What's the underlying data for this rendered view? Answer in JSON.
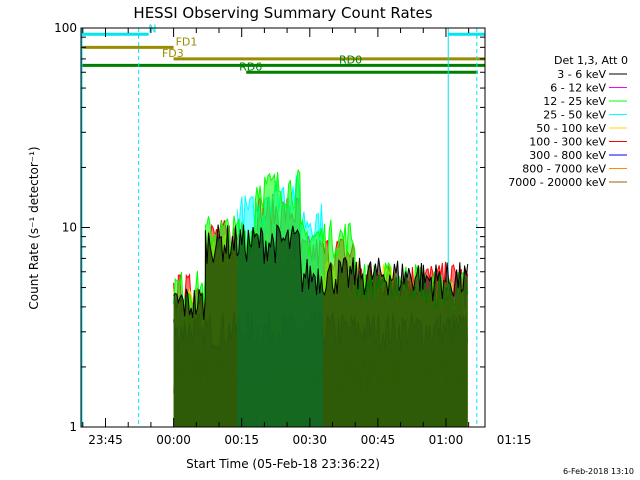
{
  "chart_data": {
    "type": "line",
    "title": "HESSI Observing Summary Count Rates",
    "xlabel": "Start Time (05-Feb-18 23:36:22)",
    "ylabel": "Count Rate (s⁻¹ detector⁻¹)",
    "y_scale": "log",
    "ylim": [
      1,
      100
    ],
    "x_ticks": [
      "23:45",
      "00:00",
      "00:15",
      "00:30",
      "00:45",
      "01:00",
      "01:15"
    ],
    "y_ticks": [
      "1",
      "10",
      "100"
    ],
    "x_range_minutes": [
      -20.4,
      68.6
    ],
    "legend_title": "Det 1,3, Att 0",
    "legend_position": "right",
    "series": [
      {
        "name": "3 - 6 keV",
        "color": "#000000"
      },
      {
        "name": "6 - 12 keV",
        "color": "#ff00ff"
      },
      {
        "name": "12 - 25 keV",
        "color": "#00ff00"
      },
      {
        "name": "25 - 50 keV",
        "color": "#00ffff"
      },
      {
        "name": "50 - 100 keV",
        "color": "#ffd700"
      },
      {
        "name": "100 - 300 keV",
        "color": "#ff0000"
      },
      {
        "name": "300 - 800 keV",
        "color": "#0000ff"
      },
      {
        "name": "800 - 7000 keV",
        "color": "#ff8c00"
      },
      {
        "name": "7000 - 20000 keV",
        "color": "#a06000"
      }
    ],
    "bands": [
      {
        "band": "3 - 6 keV",
        "segments": [
          [
            0,
            7,
            4.2
          ],
          [
            7,
            28,
            8.5
          ],
          [
            28,
            55,
            5.8
          ],
          [
            55,
            65,
            5.5
          ]
        ]
      },
      {
        "band": "12 - 25 keV",
        "segments": [
          [
            0,
            7,
            5.0
          ],
          [
            7,
            18,
            9.5
          ],
          [
            18,
            28,
            16
          ],
          [
            28,
            40,
            9.0
          ],
          [
            40,
            55,
            5.5
          ],
          [
            55,
            65,
            5.0
          ]
        ]
      },
      {
        "band": "25 - 50 keV",
        "segments": [
          [
            14,
            20,
            12
          ],
          [
            20,
            28,
            15
          ],
          [
            28,
            33,
            11
          ]
        ]
      },
      {
        "band": "50 - 100 keV",
        "segments": [
          [
            0,
            7,
            4.0
          ],
          [
            7,
            28,
            8.0
          ],
          [
            28,
            55,
            5.5
          ],
          [
            55,
            65,
            4.5
          ]
        ]
      },
      {
        "band": "100 - 300 keV",
        "segments": [
          [
            0,
            7,
            4.8
          ],
          [
            7,
            18,
            9.0
          ],
          [
            18,
            28,
            12
          ],
          [
            28,
            40,
            7.5
          ],
          [
            40,
            55,
            5.5
          ],
          [
            55,
            65,
            5.5
          ]
        ]
      },
      {
        "band": "300 - 800 keV",
        "segments": [
          [
            0,
            65,
            3.1
          ]
        ]
      },
      {
        "band": "800 - 7000 keV",
        "segments": [
          [
            0,
            65,
            1.9
          ]
        ]
      }
    ],
    "flag_lines": [
      {
        "name": "N",
        "color": "#00e5ee",
        "segments": [
          [
            -20.4,
            -5.5
          ],
          [
            60.5,
            68.6
          ]
        ],
        "y": 93
      },
      {
        "name": "FD1",
        "color": "#9a8c00",
        "segments": [
          [
            -20.4,
            0
          ]
        ],
        "y": 80
      },
      {
        "name": "FD3",
        "color": "#9a8c00",
        "segments": [
          [
            0,
            68.6
          ]
        ],
        "y": 70
      },
      {
        "name": "RD0",
        "color": "#008000",
        "segments": [
          [
            -20.4,
            68.6
          ]
        ],
        "y": 65
      },
      {
        "name": "RD6",
        "color": "#008000",
        "segments": [
          [
            16,
            35
          ],
          [
            35,
            67
          ]
        ],
        "y": 60
      }
    ],
    "vertical_lines": [
      {
        "x": -7.7,
        "color": "#00e5ee",
        "style": "dashed"
      },
      {
        "x": 60.5,
        "color": "#00e5ee",
        "style": "solid"
      },
      {
        "x": 66.8,
        "color": "#00e5ee",
        "style": "dashed"
      }
    ],
    "timestamp": "6-Feb-2018 13:10"
  }
}
